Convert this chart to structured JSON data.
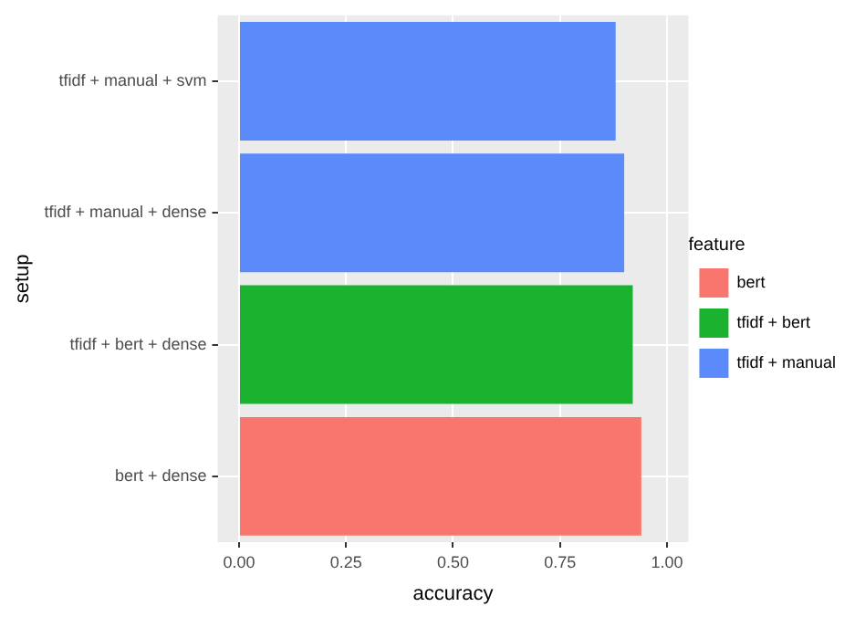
{
  "chart_data": {
    "type": "bar",
    "orientation": "horizontal",
    "xlabel": "accuracy",
    "ylabel": "setup",
    "legend_title": "feature",
    "categories": [
      "tfidf + manual + svm",
      "tfidf + manual + dense",
      "tfidf + bert + dense",
      "bert + dense"
    ],
    "series": [
      {
        "name": "bert",
        "color": "#f8766d",
        "values": [
          null,
          null,
          null,
          0.94
        ]
      },
      {
        "name": "tfidf + bert",
        "color": "#1ab22f",
        "values": [
          null,
          null,
          0.92,
          null
        ]
      },
      {
        "name": "tfidf + manual",
        "color": "#5b8bfa",
        "values": [
          0.88,
          0.9,
          null,
          null
        ]
      }
    ],
    "xlim": [
      -0.05,
      1.05
    ],
    "xticks": [
      {
        "value": 0,
        "label": "0.00"
      },
      {
        "value": 0.25,
        "label": "0.25"
      },
      {
        "value": 0.5,
        "label": "0.50"
      },
      {
        "value": 0.75,
        "label": "0.75"
      },
      {
        "value": 1,
        "label": "1.00"
      }
    ],
    "grid": true,
    "legend": "right"
  }
}
